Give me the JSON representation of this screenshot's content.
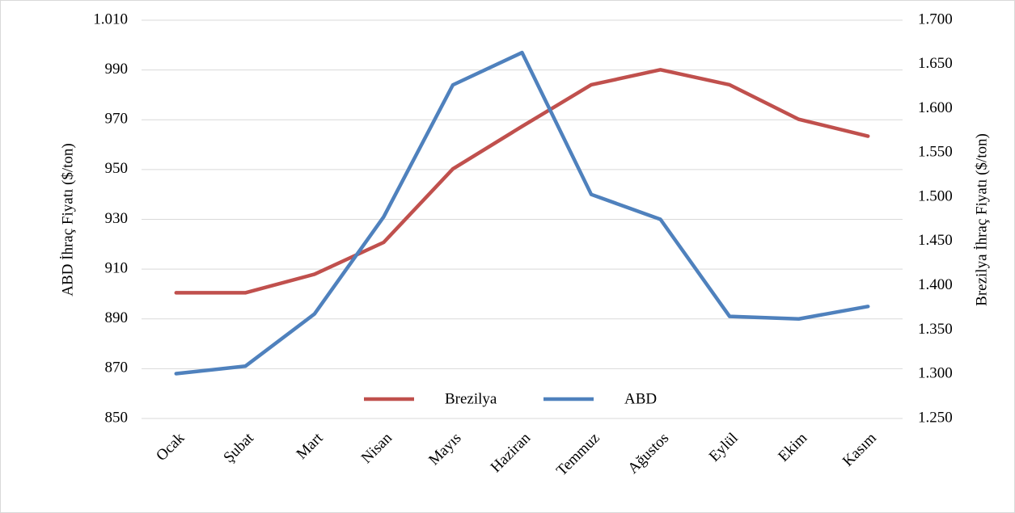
{
  "chart_data": {
    "type": "line",
    "categories": [
      "Ocak",
      "Şubat",
      "Mart",
      "Nisan",
      "Mayıs",
      "Haziran",
      "Temmuz",
      "Ağustos",
      "Eylül",
      "Ekim",
      "Kasım"
    ],
    "series": [
      {
        "name": "Brezilya",
        "color": "#c0504d",
        "axis": "y2",
        "values": [
          1392,
          1392,
          1413,
          1449,
          1532,
          1580,
          1627,
          1644,
          1627,
          1588,
          1569
        ]
      },
      {
        "name": "ABD",
        "color": "#4f81bd",
        "values": [
          868,
          871,
          892,
          931,
          984,
          997,
          940,
          930,
          891,
          890,
          895
        ]
      }
    ],
    "ylabel": "ABD İhraç Fiyatı ($/ton)",
    "y2label": "Brezilya İhraç Fiyatı ($/ton)",
    "ylim": [
      850,
      1010
    ],
    "yticks": [
      850,
      870,
      890,
      910,
      930,
      950,
      970,
      990,
      {
        "value": 1010,
        "label": "1.010"
      }
    ],
    "y2lim": [
      1250,
      1700
    ],
    "y2ticks": [
      {
        "value": 1250,
        "label": "1.250"
      },
      {
        "value": 1300,
        "label": "1.300"
      },
      {
        "value": 1350,
        "label": "1.350"
      },
      {
        "value": 1400,
        "label": "1.400"
      },
      {
        "value": 1450,
        "label": "1.450"
      },
      {
        "value": 1500,
        "label": "1.500"
      },
      {
        "value": 1550,
        "label": "1.550"
      },
      {
        "value": 1600,
        "label": "1.600"
      },
      {
        "value": 1650,
        "label": "1.650"
      },
      {
        "value": 1700,
        "label": "1.700"
      }
    ],
    "grid": true,
    "legend": "bottom"
  }
}
